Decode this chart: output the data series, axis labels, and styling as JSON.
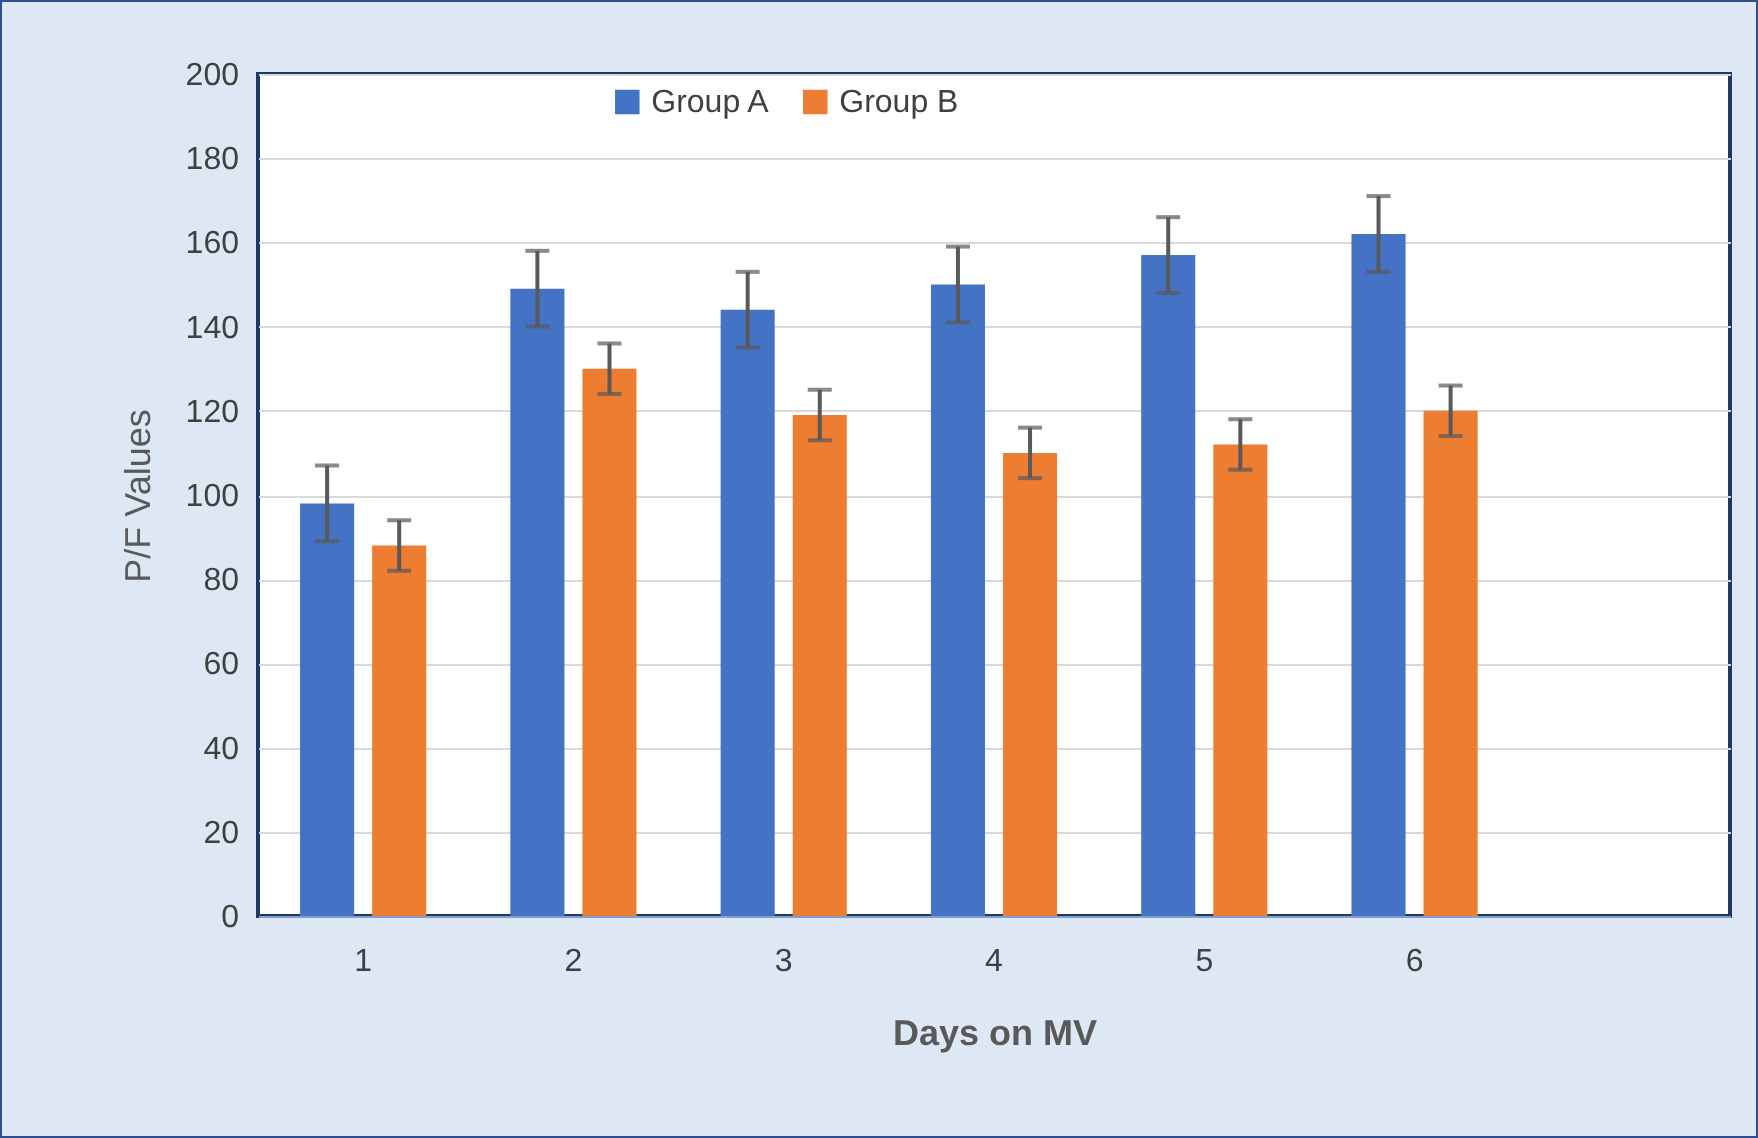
{
  "chart_data": {
    "type": "bar",
    "xlabel": "Days on MV",
    "ylabel": "P/F Values",
    "categories": [
      "1",
      "2",
      "3",
      "4",
      "5",
      "6",
      null
    ],
    "series": [
      {
        "name": "Group A",
        "color": "#4472c4",
        "values": [
          98,
          149,
          144,
          150,
          157,
          162,
          null
        ],
        "errors": [
          9,
          9,
          9,
          9,
          9,
          9,
          null
        ]
      },
      {
        "name": "Group B",
        "color": "#ed7d31",
        "values": [
          88,
          130,
          119,
          110,
          112,
          120,
          null
        ],
        "errors": [
          6,
          6,
          6,
          6,
          6,
          6,
          null
        ]
      }
    ],
    "ylim": [
      0,
      200
    ],
    "yticks": [
      0,
      20,
      40,
      60,
      80,
      100,
      120,
      140,
      160,
      180,
      200
    ],
    "grid": "y",
    "legend": "top"
  }
}
